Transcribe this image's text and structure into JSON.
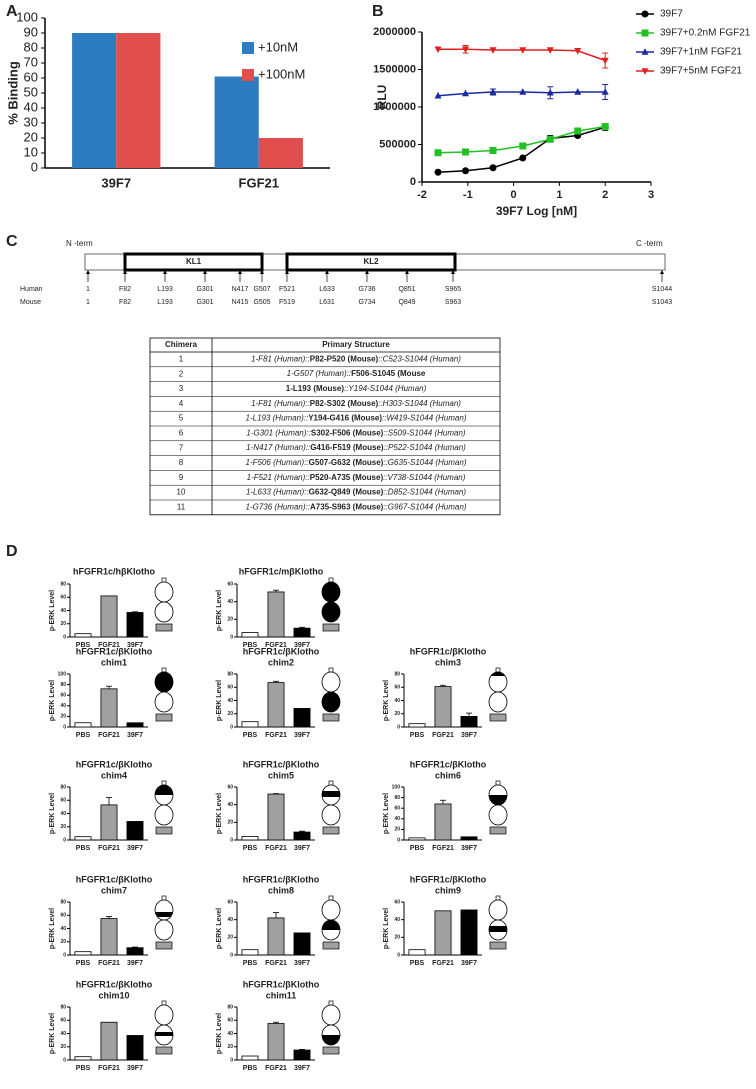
{
  "panel_labels": [
    "A",
    "B",
    "C",
    "D"
  ],
  "chart_data": [
    {
      "type": "bar",
      "ylabel": "% Binding",
      "categories": [
        "39F7",
        "FGF21"
      ],
      "series": [
        {
          "name": "+10nM",
          "color": "#2e7cc0",
          "values": [
            90,
            61
          ]
        },
        {
          "name": "+100nM",
          "color": "#e04e4e",
          "values": [
            90,
            20
          ]
        }
      ],
      "ylim": [
        0,
        100
      ],
      "yticks": [
        0,
        10,
        20,
        30,
        40,
        50,
        60,
        70,
        80,
        90,
        100
      ],
      "legend": "upper right"
    },
    {
      "type": "scatter",
      "xlabel": "39F7 Log [nM]",
      "ylabel": "RLU",
      "x": [
        -1.65,
        -1.05,
        -0.45,
        0.2,
        0.8,
        1.4,
        2.0
      ],
      "series": [
        {
          "name": "39F7",
          "color": "#000000",
          "marker": "circle",
          "values": [
            130000,
            150000,
            190000,
            320000,
            580000,
            620000,
            730000
          ],
          "errors": [
            null,
            null,
            null,
            null,
            40000,
            null,
            40000
          ]
        },
        {
          "name": "39F7+0.2nM FGF21",
          "color": "#22c022",
          "marker": "square",
          "values": [
            390000,
            400000,
            420000,
            480000,
            570000,
            680000,
            740000
          ],
          "errors": [
            null,
            null,
            null,
            null,
            null,
            null,
            40000
          ]
        },
        {
          "name": "39F7+1nM FGF21",
          "color": "#1a2aa0",
          "marker": "triangle-up",
          "values": [
            1150000,
            1180000,
            1200000,
            1200000,
            1190000,
            1200000,
            1200000
          ],
          "errors": [
            null,
            null,
            40000,
            null,
            80000,
            null,
            100000
          ]
        },
        {
          "name": "39F7+5nM FGF21",
          "color": "#e02020",
          "marker": "triangle-down",
          "values": [
            1770000,
            1770000,
            1760000,
            1760000,
            1760000,
            1750000,
            1620000
          ],
          "errors": [
            null,
            50000,
            null,
            null,
            null,
            null,
            100000
          ]
        }
      ],
      "xlim": [
        -2,
        3
      ],
      "xticks": [
        -2,
        -1,
        0,
        1,
        2,
        3
      ],
      "ylim": [
        0,
        2000000
      ],
      "yticks": [
        0,
        500000,
        1000000,
        1500000,
        2000000
      ],
      "legend": "outside right"
    },
    {
      "type": "bar",
      "title": "hFGFR1c/hβKlotho",
      "ylabel": "p-ERK Level",
      "categories": [
        "PBS",
        "FGF21",
        "39F7"
      ],
      "colors": [
        "#ffffff",
        "#a0a0a0",
        "#000000"
      ],
      "values": [
        5,
        62,
        37
      ],
      "errors": [
        null,
        null,
        1
      ],
      "ylim": [
        0,
        80
      ],
      "yticks": [
        0,
        20,
        40,
        60,
        80
      ]
    },
    {
      "type": "bar",
      "title": "hFGFR1c/mβKlotho",
      "ylabel": "p-ERK Level",
      "categories": [
        "PBS",
        "FGF21",
        "39F7"
      ],
      "colors": [
        "#ffffff",
        "#a0a0a0",
        "#000000"
      ],
      "values": [
        5,
        51,
        10
      ],
      "errors": [
        null,
        2,
        1
      ],
      "ylim": [
        0,
        60
      ],
      "yticks": [
        0,
        20,
        40,
        60
      ]
    },
    {
      "type": "bar",
      "title": "hFGFR1c/βKlotho",
      "subtitle": "chim1",
      "ylabel": "p-ERK Level",
      "categories": [
        "PBS",
        "FGF21",
        "39F7"
      ],
      "colors": [
        "#ffffff",
        "#a0a0a0",
        "#000000"
      ],
      "values": [
        8,
        72,
        8
      ],
      "errors": [
        null,
        5,
        null
      ],
      "ylim": [
        0,
        100
      ],
      "yticks": [
        0,
        20,
        40,
        60,
        80,
        100
      ]
    },
    {
      "type": "bar",
      "title": "hFGFR1c/βKlotho",
      "subtitle": "chim2",
      "ylabel": "p-ERK Level",
      "categories": [
        "PBS",
        "FGF21",
        "39F7"
      ],
      "colors": [
        "#ffffff",
        "#a0a0a0",
        "#000000"
      ],
      "values": [
        8,
        67,
        28
      ],
      "errors": [
        null,
        2,
        null
      ],
      "ylim": [
        0,
        80
      ],
      "yticks": [
        0,
        20,
        40,
        60,
        80
      ]
    },
    {
      "type": "bar",
      "title": "hFGFR1c/βKlotho",
      "subtitle": "chim3",
      "ylabel": "p-ERK Level",
      "categories": [
        "PBS",
        "FGF21",
        "39F7"
      ],
      "colors": [
        "#ffffff",
        "#a0a0a0",
        "#000000"
      ],
      "values": [
        5,
        61,
        16
      ],
      "errors": [
        null,
        2,
        5
      ],
      "ylim": [
        0,
        80
      ],
      "yticks": [
        0,
        20,
        40,
        60,
        80
      ]
    },
    {
      "type": "bar",
      "title": "hFGFR1c/βKlotho",
      "subtitle": "chim4",
      "ylabel": "p-ERK Level",
      "categories": [
        "PBS",
        "FGF21",
        "39F7"
      ],
      "colors": [
        "#ffffff",
        "#a0a0a0",
        "#000000"
      ],
      "values": [
        5,
        53,
        28
      ],
      "errors": [
        null,
        11,
        null
      ],
      "ylim": [
        0,
        80
      ],
      "yticks": [
        0,
        20,
        40,
        60,
        80
      ]
    },
    {
      "type": "bar",
      "title": "hFGFR1c/βKlotho",
      "subtitle": "chim5",
      "ylabel": "p-ERK Level",
      "categories": [
        "PBS",
        "FGF21",
        "39F7"
      ],
      "colors": [
        "#ffffff",
        "#a0a0a0",
        "#000000"
      ],
      "values": [
        4,
        52,
        9
      ],
      "errors": [
        null,
        0.5,
        1
      ],
      "ylim": [
        0,
        60
      ],
      "yticks": [
        0,
        20,
        40,
        60
      ]
    },
    {
      "type": "bar",
      "title": "hFGFR1c/βKlotho",
      "subtitle": "chim6",
      "ylabel": "p-ERK Level",
      "categories": [
        "PBS",
        "FGF21",
        "39F7"
      ],
      "colors": [
        "#ffffff",
        "#a0a0a0",
        "#000000"
      ],
      "values": [
        4,
        68,
        6
      ],
      "errors": [
        null,
        7,
        null
      ],
      "ylim": [
        0,
        100
      ],
      "yticks": [
        0,
        20,
        40,
        60,
        80,
        100
      ]
    },
    {
      "type": "bar",
      "title": "hFGFR1c/βKlotho",
      "subtitle": "chim7",
      "ylabel": "p-ERK Level",
      "categories": [
        "PBS",
        "FGF21",
        "39F7"
      ],
      "colors": [
        "#ffffff",
        "#a0a0a0",
        "#000000"
      ],
      "values": [
        5,
        55,
        11
      ],
      "errors": [
        null,
        3,
        1
      ],
      "ylim": [
        0,
        80
      ],
      "yticks": [
        0,
        20,
        40,
        60,
        80
      ]
    },
    {
      "type": "bar",
      "title": "hFGFR1c/βKlotho",
      "subtitle": "chim8",
      "ylabel": "p-ERK Level",
      "categories": [
        "PBS",
        "FGF21",
        "39F7"
      ],
      "colors": [
        "#ffffff",
        "#a0a0a0",
        "#000000"
      ],
      "values": [
        6,
        42,
        25
      ],
      "errors": [
        null,
        6,
        null
      ],
      "ylim": [
        0,
        60
      ],
      "yticks": [
        0,
        20,
        40,
        60
      ]
    },
    {
      "type": "bar",
      "title": "hFGFR1c/βKlotho",
      "subtitle": "chim9",
      "ylabel": "p-ERK Level",
      "categories": [
        "PBS",
        "FGF21",
        "39F7"
      ],
      "colors": [
        "#ffffff",
        "#a0a0a0",
        "#000000"
      ],
      "values": [
        6,
        50,
        51
      ],
      "errors": [
        null,
        null,
        null
      ],
      "ylim": [
        0,
        60
      ],
      "yticks": [
        0,
        20,
        40,
        60
      ]
    },
    {
      "type": "bar",
      "title": "hFGFR1c/βKlotho",
      "subtitle": "chim10",
      "ylabel": "p-ERK Level",
      "categories": [
        "PBS",
        "FGF21",
        "39F7"
      ],
      "colors": [
        "#ffffff",
        "#a0a0a0",
        "#000000"
      ],
      "values": [
        5,
        57,
        37
      ],
      "errors": [
        null,
        null,
        null
      ],
      "ylim": [
        0,
        80
      ],
      "yticks": [
        0,
        20,
        40,
        60,
        80
      ]
    },
    {
      "type": "bar",
      "title": "hFGFR1c/βKlotho",
      "subtitle": "chim11",
      "ylabel": "p-ERK Level",
      "categories": [
        "PBS",
        "FGF21",
        "39F7"
      ],
      "colors": [
        "#ffffff",
        "#a0a0a0",
        "#000000"
      ],
      "values": [
        6,
        55,
        15
      ],
      "errors": [
        null,
        2,
        1
      ],
      "ylim": [
        0,
        80
      ],
      "yticks": [
        0,
        20,
        40,
        60,
        80
      ]
    }
  ],
  "domain_map": {
    "n_term": "N -term",
    "c_term": "C -term",
    "domains": [
      "KL1",
      "KL2"
    ],
    "rows": [
      {
        "label": "Human",
        "positions": [
          "1",
          "F82",
          "L193",
          "G301",
          "N417",
          "G507",
          "F521",
          "L633",
          "G736",
          "Q851",
          "S965",
          "S1044"
        ]
      },
      {
        "label": "Mouse",
        "positions": [
          "1",
          "F82",
          "L193",
          "G301",
          "N415",
          "G505",
          "F519",
          "L631",
          "G734",
          "Q849",
          "S963",
          "S1043"
        ]
      }
    ]
  },
  "table": {
    "header": [
      "Chimera",
      "Primary Structure"
    ],
    "rows": [
      {
        "chimera": "1",
        "structure": [
          {
            "text": "1-F81 (Human)::",
            "bold": false
          },
          {
            "text": "P82-P520 (Mouse)",
            "bold": true
          },
          {
            "text": "::C523-S1044 (Human)",
            "bold": false
          }
        ]
      },
      {
        "chimera": "2",
        "structure": [
          {
            "text": "1-G507 (Human)::",
            "bold": false
          },
          {
            "text": "F506-S1045 (Mouse",
            "bold": true
          }
        ]
      },
      {
        "chimera": "3",
        "structure": [
          {
            "text": "1-L193 (Mouse)",
            "bold": true
          },
          {
            "text": "::Y194-S1044 (Human)",
            "bold": false
          }
        ]
      },
      {
        "chimera": "4",
        "structure": [
          {
            "text": "1-F81 (Human)::",
            "bold": false
          },
          {
            "text": "P82-S302 (Mouse)",
            "bold": true
          },
          {
            "text": "::H303-S1044 (Human)",
            "bold": false
          }
        ]
      },
      {
        "chimera": "5",
        "structure": [
          {
            "text": "1-L193 (Human)::",
            "bold": false
          },
          {
            "text": "Y194-G416 (Mouse)",
            "bold": true
          },
          {
            "text": "::W419-S1044 (Human)",
            "bold": false
          }
        ]
      },
      {
        "chimera": "6",
        "structure": [
          {
            "text": "1-G301 (Human)::",
            "bold": false
          },
          {
            "text": "S302-F506 (Mouse)",
            "bold": true
          },
          {
            "text": "::S509-S1044 (Human)",
            "bold": false
          }
        ]
      },
      {
        "chimera": "7",
        "structure": [
          {
            "text": "1-N417 (Human)::",
            "bold": false
          },
          {
            "text": "G416-F519 (Mouse)",
            "bold": true
          },
          {
            "text": "::P522-S1044 (Human)",
            "bold": false
          }
        ]
      },
      {
        "chimera": "8",
        "structure": [
          {
            "text": "1-F506 (Human)::",
            "bold": false
          },
          {
            "text": "G507-G632 (Mouse)",
            "bold": true
          },
          {
            "text": "::G635-S1044 (Human)",
            "bold": false
          }
        ]
      },
      {
        "chimera": "9",
        "structure": [
          {
            "text": "1-F521 (Human)::",
            "bold": false
          },
          {
            "text": "P520-A735 (Mouse)",
            "bold": true
          },
          {
            "text": "::V738-S1044 (Human)",
            "bold": false
          }
        ]
      },
      {
        "chimera": "10",
        "structure": [
          {
            "text": "1-L633 (Human)::",
            "bold": false
          },
          {
            "text": "G632-Q849 (Mouse)",
            "bold": true
          },
          {
            "text": "::D852-S1044 (Human)",
            "bold": false
          }
        ]
      },
      {
        "chimera": "11",
        "structure": [
          {
            "text": "1-G736 (Human)::",
            "bold": false
          },
          {
            "text": "A735-S963 (Mouse)",
            "bold": true
          },
          {
            "text": "::G967-S1044 (Human)",
            "bold": false
          }
        ]
      }
    ]
  }
}
